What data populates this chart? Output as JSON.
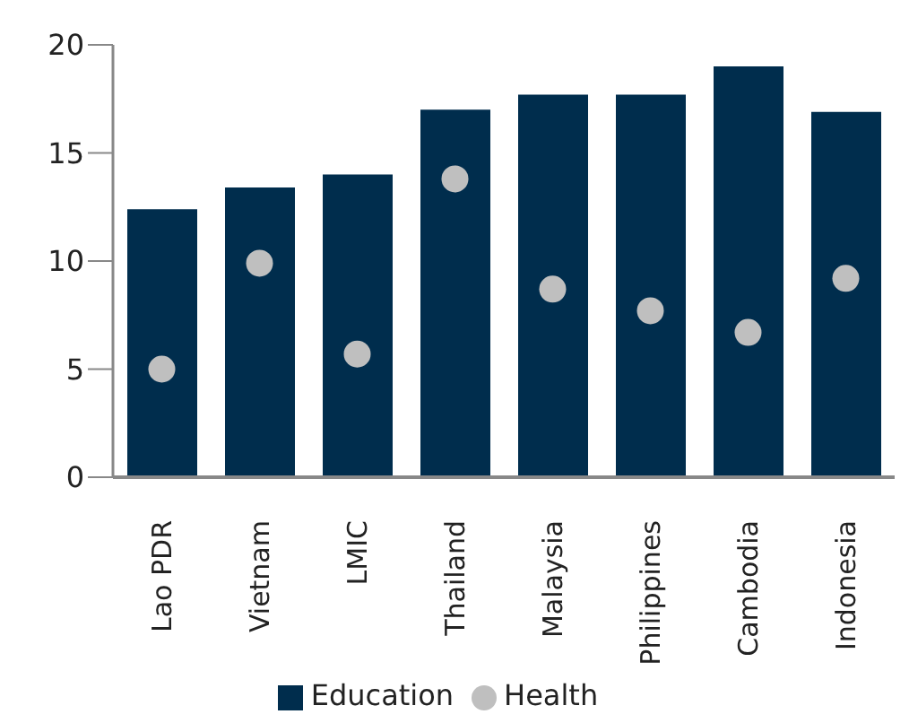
{
  "chart_data": {
    "type": "bar",
    "categories": [
      "Lao PDR",
      "Vietnam",
      "LMIC",
      "Thailand",
      "Malaysia",
      "Philippines",
      "Cambodia",
      "Indonesia"
    ],
    "series": [
      {
        "name": "Education",
        "color": "#002d4d",
        "values": [
          12.4,
          13.4,
          14.0,
          17.0,
          17.7,
          17.7,
          19.0,
          16.9
        ]
      },
      {
        "name": "Health",
        "type": "scatter",
        "color": "#bfbfbf",
        "values": [
          5.0,
          9.9,
          5.7,
          13.8,
          8.7,
          7.7,
          6.7,
          9.2
        ]
      }
    ],
    "ylim": [
      0,
      20
    ],
    "yticks": [
      0,
      5,
      10,
      15,
      20
    ],
    "legend": "bottom",
    "marker": "circle"
  }
}
